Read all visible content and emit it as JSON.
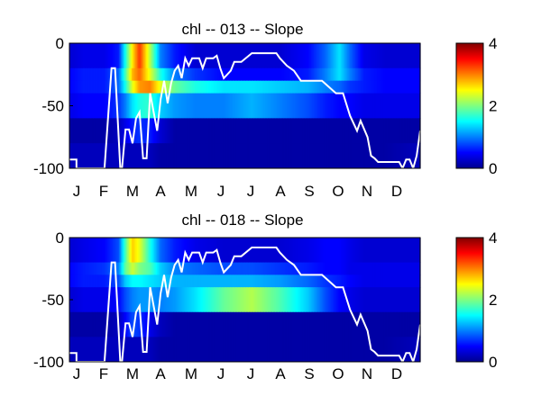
{
  "chart_data": [
    {
      "type": "heatmap",
      "title": "chl -- 013 -- Slope",
      "x_ticks": [
        "J",
        "F",
        "M",
        "A",
        "M",
        "J",
        "J",
        "A",
        "S",
        "O",
        "N",
        "D"
      ],
      "y_ticks": [
        "0",
        "-50",
        "-100"
      ],
      "ylim": [
        -100,
        0
      ],
      "colorbar": {
        "ticks": [
          "0",
          "2",
          "4"
        ],
        "range": [
          0,
          4
        ],
        "colormap": "jet"
      },
      "depth_bands": [
        [
          0,
          -20
        ],
        [
          -20,
          -30
        ],
        [
          -30,
          -40
        ],
        [
          -40,
          -60
        ],
        [
          -60,
          -80
        ],
        [
          -80,
          -100
        ]
      ],
      "time_fractions": [
        0,
        0.04,
        0.1,
        0.14,
        0.16,
        0.18,
        0.2,
        0.23,
        0.26,
        0.3,
        0.36,
        0.44,
        0.52,
        0.6,
        0.68,
        0.73,
        0.77,
        0.8,
        0.84,
        0.9,
        1.0
      ],
      "band_values": [
        [
          0.3,
          0.4,
          0.4,
          0.6,
          1.6,
          2.6,
          3.3,
          2.2,
          1.0,
          0.6,
          0.3,
          0.3,
          0.3,
          0.3,
          0.5,
          0.9,
          1.4,
          0.9,
          0.4,
          0.3,
          0.3
        ],
        [
          0.5,
          0.6,
          0.6,
          0.9,
          1.8,
          2.8,
          3.1,
          2.4,
          1.6,
          1.0,
          0.7,
          0.5,
          0.5,
          0.5,
          0.6,
          1.0,
          1.4,
          1.0,
          0.6,
          0.5,
          0.5
        ],
        [
          0.5,
          0.6,
          0.6,
          0.9,
          1.6,
          2.4,
          2.9,
          3.0,
          2.4,
          1.9,
          1.6,
          1.4,
          1.4,
          1.3,
          1.2,
          1.0,
          0.9,
          0.7,
          0.6,
          0.5,
          0.5
        ],
        [
          0.4,
          0.5,
          0.5,
          0.7,
          1.0,
          1.4,
          1.6,
          1.7,
          1.3,
          1.1,
          1.0,
          1.0,
          1.2,
          1.0,
          0.8,
          0.6,
          0.5,
          0.5,
          0.4,
          0.4,
          0.4
        ],
        [
          0.1,
          0.1,
          0.1,
          0.2,
          0.4,
          0.6,
          0.7,
          0.6,
          0.3,
          0.1,
          0.1,
          0.1,
          0.1,
          0.1,
          0.1,
          0.1,
          0.1,
          0.1,
          0.1,
          0.1,
          0.1
        ],
        [
          0.2,
          0.2,
          0.2,
          0.2,
          0.2,
          0.2,
          0.2,
          0.2,
          0.1,
          0.1,
          0.1,
          0.1,
          0.1,
          0.1,
          0.1,
          0.1,
          0.1,
          0.1,
          0.1,
          0.1,
          0.2
        ]
      ],
      "mixed_layer_line": [
        [
          0,
          -93
        ],
        [
          0.02,
          -93
        ],
        [
          0.02,
          -100
        ],
        [
          0.1,
          -100
        ],
        [
          0.12,
          -20
        ],
        [
          0.13,
          -20
        ],
        [
          0.145,
          -100
        ],
        [
          0.15,
          -100
        ],
        [
          0.16,
          -69
        ],
        [
          0.17,
          -69
        ],
        [
          0.18,
          -80
        ],
        [
          0.19,
          -60
        ],
        [
          0.2,
          -55
        ],
        [
          0.21,
          -92
        ],
        [
          0.22,
          -92
        ],
        [
          0.23,
          -40
        ],
        [
          0.24,
          -55
        ],
        [
          0.25,
          -70
        ],
        [
          0.26,
          -45
        ],
        [
          0.27,
          -30
        ],
        [
          0.28,
          -48
        ],
        [
          0.29,
          -32
        ],
        [
          0.3,
          -22
        ],
        [
          0.31,
          -18
        ],
        [
          0.32,
          -28
        ],
        [
          0.33,
          -12
        ],
        [
          0.34,
          -18
        ],
        [
          0.35,
          -12
        ],
        [
          0.37,
          -12
        ],
        [
          0.38,
          -20
        ],
        [
          0.39,
          -12
        ],
        [
          0.41,
          -12
        ],
        [
          0.42,
          -10
        ],
        [
          0.43,
          -20
        ],
        [
          0.44,
          -28
        ],
        [
          0.46,
          -22
        ],
        [
          0.47,
          -15
        ],
        [
          0.49,
          -15
        ],
        [
          0.52,
          -8
        ],
        [
          0.59,
          -8
        ],
        [
          0.6,
          -12
        ],
        [
          0.62,
          -18
        ],
        [
          0.64,
          -22
        ],
        [
          0.66,
          -30
        ],
        [
          0.72,
          -30
        ],
        [
          0.76,
          -40
        ],
        [
          0.78,
          -40
        ],
        [
          0.8,
          -58
        ],
        [
          0.82,
          -70
        ],
        [
          0.83,
          -62
        ],
        [
          0.85,
          -75
        ],
        [
          0.86,
          -90
        ],
        [
          0.87,
          -92
        ],
        [
          0.88,
          -95
        ],
        [
          0.94,
          -95
        ],
        [
          0.95,
          -100
        ],
        [
          0.96,
          -93
        ],
        [
          0.97,
          -93
        ],
        [
          0.98,
          -100
        ],
        [
          0.99,
          -90
        ],
        [
          1.0,
          -70
        ]
      ]
    },
    {
      "type": "heatmap",
      "title": "chl -- 018 -- Slope",
      "x_ticks": [
        "J",
        "F",
        "M",
        "A",
        "M",
        "J",
        "J",
        "A",
        "S",
        "O",
        "N",
        "D"
      ],
      "y_ticks": [
        "0",
        "-50",
        "-100"
      ],
      "ylim": [
        -100,
        0
      ],
      "colorbar": {
        "ticks": [
          "0",
          "2",
          "4"
        ],
        "range": [
          0,
          4
        ],
        "colormap": "jet"
      },
      "depth_bands": [
        [
          0,
          -20
        ],
        [
          -20,
          -30
        ],
        [
          -30,
          -40
        ],
        [
          -40,
          -60
        ],
        [
          -60,
          -80
        ],
        [
          -80,
          -100
        ]
      ],
      "time_fractions": [
        0,
        0.04,
        0.1,
        0.14,
        0.16,
        0.18,
        0.2,
        0.23,
        0.26,
        0.3,
        0.36,
        0.44,
        0.52,
        0.6,
        0.68,
        0.73,
        0.77,
        0.8,
        0.84,
        0.9,
        1.0
      ],
      "band_values": [
        [
          0.3,
          0.4,
          0.5,
          0.8,
          1.8,
          2.7,
          2.4,
          1.6,
          0.9,
          0.6,
          0.4,
          0.3,
          0.3,
          0.3,
          0.4,
          0.5,
          0.5,
          0.4,
          0.3,
          0.3,
          0.3
        ],
        [
          0.5,
          0.6,
          0.7,
          1.0,
          1.9,
          2.3,
          2.0,
          1.8,
          1.3,
          1.0,
          0.9,
          0.8,
          0.8,
          0.7,
          0.6,
          0.5,
          0.5,
          0.4,
          0.4,
          0.4,
          0.4
        ],
        [
          0.5,
          0.6,
          0.6,
          0.8,
          1.3,
          1.5,
          1.5,
          1.4,
          1.3,
          1.2,
          1.2,
          1.2,
          1.2,
          1.1,
          0.9,
          0.7,
          0.6,
          0.5,
          0.4,
          0.4,
          0.4
        ],
        [
          0.3,
          0.4,
          0.4,
          0.5,
          0.8,
          1.0,
          1.1,
          1.1,
          1.0,
          1.1,
          1.4,
          1.9,
          2.2,
          1.8,
          1.3,
          0.8,
          0.5,
          0.4,
          0.3,
          0.3,
          0.3
        ],
        [
          0.1,
          0.1,
          0.1,
          0.2,
          0.5,
          0.8,
          0.7,
          0.4,
          0.2,
          0.1,
          0.1,
          0.1,
          0.1,
          0.1,
          0.1,
          0.1,
          0.1,
          0.1,
          0.1,
          0.1,
          0.1
        ],
        [
          0.2,
          0.2,
          0.2,
          0.2,
          0.2,
          0.2,
          0.2,
          0.2,
          0.1,
          0.1,
          0.1,
          0.1,
          0.1,
          0.1,
          0.1,
          0.1,
          0.1,
          0.1,
          0.1,
          0.1,
          0.2
        ]
      ],
      "mixed_layer_line": [
        [
          0,
          -93
        ],
        [
          0.02,
          -93
        ],
        [
          0.02,
          -100
        ],
        [
          0.1,
          -100
        ],
        [
          0.12,
          -20
        ],
        [
          0.13,
          -20
        ],
        [
          0.145,
          -100
        ],
        [
          0.15,
          -100
        ],
        [
          0.16,
          -69
        ],
        [
          0.17,
          -69
        ],
        [
          0.18,
          -80
        ],
        [
          0.19,
          -60
        ],
        [
          0.2,
          -55
        ],
        [
          0.21,
          -92
        ],
        [
          0.22,
          -92
        ],
        [
          0.23,
          -40
        ],
        [
          0.24,
          -55
        ],
        [
          0.25,
          -70
        ],
        [
          0.26,
          -45
        ],
        [
          0.27,
          -30
        ],
        [
          0.28,
          -48
        ],
        [
          0.29,
          -32
        ],
        [
          0.3,
          -22
        ],
        [
          0.31,
          -18
        ],
        [
          0.32,
          -28
        ],
        [
          0.33,
          -12
        ],
        [
          0.34,
          -18
        ],
        [
          0.35,
          -12
        ],
        [
          0.37,
          -12
        ],
        [
          0.38,
          -20
        ],
        [
          0.39,
          -12
        ],
        [
          0.41,
          -12
        ],
        [
          0.42,
          -10
        ],
        [
          0.43,
          -20
        ],
        [
          0.44,
          -28
        ],
        [
          0.46,
          -22
        ],
        [
          0.47,
          -15
        ],
        [
          0.49,
          -15
        ],
        [
          0.52,
          -8
        ],
        [
          0.59,
          -8
        ],
        [
          0.6,
          -12
        ],
        [
          0.62,
          -18
        ],
        [
          0.64,
          -22
        ],
        [
          0.66,
          -30
        ],
        [
          0.72,
          -30
        ],
        [
          0.76,
          -40
        ],
        [
          0.78,
          -40
        ],
        [
          0.8,
          -58
        ],
        [
          0.82,
          -70
        ],
        [
          0.83,
          -62
        ],
        [
          0.85,
          -75
        ],
        [
          0.86,
          -90
        ],
        [
          0.87,
          -92
        ],
        [
          0.88,
          -95
        ],
        [
          0.94,
          -95
        ],
        [
          0.95,
          -100
        ],
        [
          0.96,
          -93
        ],
        [
          0.97,
          -93
        ],
        [
          0.98,
          -100
        ],
        [
          0.99,
          -90
        ],
        [
          1.0,
          -70
        ]
      ]
    }
  ]
}
